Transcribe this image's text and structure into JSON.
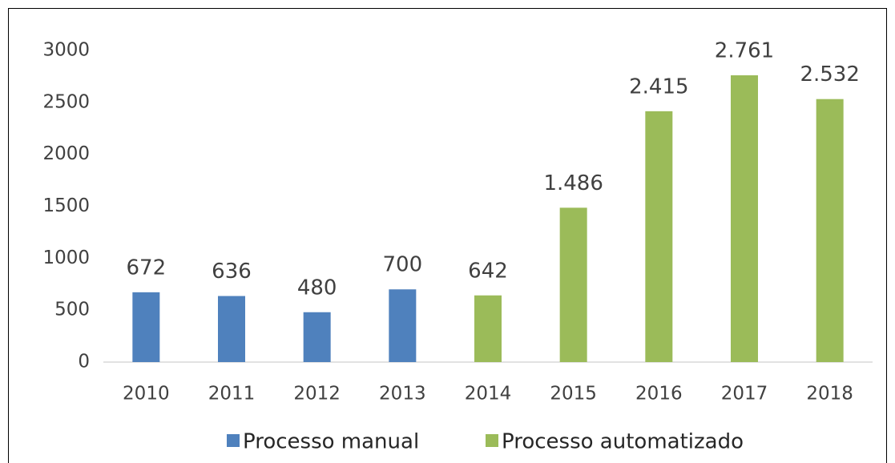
{
  "chart_data": {
    "type": "bar",
    "categories": [
      "2010",
      "2011",
      "2012",
      "2013",
      "2014",
      "2015",
      "2016",
      "2017",
      "2018"
    ],
    "series": [
      {
        "name": "Processo manual",
        "color": "#4f81bd",
        "values": [
          672,
          636,
          480,
          700,
          null,
          null,
          null,
          null,
          null
        ],
        "value_labels": [
          "672",
          "636",
          "480",
          "700",
          null,
          null,
          null,
          null,
          null
        ]
      },
      {
        "name": "Processo automatizado",
        "color": "#9bbb59",
        "values": [
          null,
          null,
          null,
          null,
          642,
          1486,
          2415,
          2761,
          2532
        ],
        "value_labels": [
          null,
          null,
          null,
          null,
          "642",
          "1.486",
          "2.415",
          "2.761",
          "2.532"
        ]
      }
    ],
    "ylim": [
      0,
      3000
    ],
    "yticks": [
      0,
      500,
      1000,
      1500,
      2000,
      2500,
      3000
    ],
    "grid": false,
    "legend": "bottom"
  }
}
